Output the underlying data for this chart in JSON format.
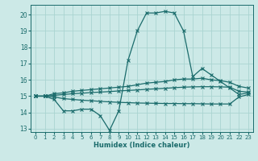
{
  "xlabel": "Humidex (Indice chaleur)",
  "bg_color": "#cce9e7",
  "grid_color": "#aad4d1",
  "line_color": "#1a6b6b",
  "xlim": [
    -0.5,
    23.5
  ],
  "ylim": [
    12.8,
    20.6
  ],
  "yticks": [
    13,
    14,
    15,
    16,
    17,
    18,
    19,
    20
  ],
  "xticks": [
    0,
    1,
    2,
    3,
    4,
    5,
    6,
    7,
    8,
    9,
    10,
    11,
    12,
    13,
    14,
    15,
    16,
    17,
    18,
    19,
    20,
    21,
    22,
    23
  ],
  "x": [
    0,
    1,
    2,
    3,
    4,
    5,
    6,
    7,
    8,
    9,
    10,
    11,
    12,
    13,
    14,
    15,
    16,
    17,
    18,
    19,
    20,
    21,
    22,
    23
  ],
  "line_max": [
    15.0,
    15.0,
    14.8,
    14.1,
    14.1,
    14.2,
    14.2,
    13.8,
    12.9,
    14.1,
    17.2,
    19.0,
    20.1,
    20.1,
    20.2,
    20.1,
    19.0,
    16.2,
    16.7,
    16.3,
    15.9,
    15.5,
    15.1,
    15.2
  ],
  "line_upper": [
    15.0,
    15.0,
    15.15,
    15.2,
    15.3,
    15.35,
    15.4,
    15.45,
    15.5,
    15.55,
    15.6,
    15.7,
    15.8,
    15.85,
    15.9,
    16.0,
    16.05,
    16.05,
    16.1,
    16.0,
    15.95,
    15.85,
    15.6,
    15.5
  ],
  "line_lower": [
    15.0,
    15.0,
    15.05,
    15.1,
    15.15,
    15.18,
    15.22,
    15.25,
    15.28,
    15.32,
    15.35,
    15.38,
    15.42,
    15.45,
    15.48,
    15.52,
    15.55,
    15.57,
    15.58,
    15.58,
    15.57,
    15.55,
    15.3,
    15.25
  ],
  "line_min": [
    15.0,
    15.0,
    14.95,
    14.85,
    14.8,
    14.75,
    14.72,
    14.68,
    14.65,
    14.62,
    14.6,
    14.58,
    14.57,
    14.56,
    14.55,
    14.55,
    14.54,
    14.54,
    14.53,
    14.52,
    14.52,
    14.52,
    14.95,
    15.1
  ]
}
